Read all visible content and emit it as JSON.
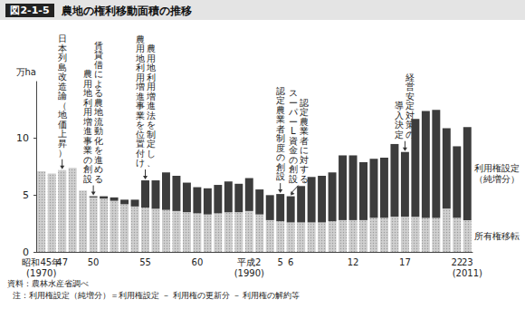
{
  "chart_data": {
    "type": "bar",
    "figure_label": "図2-1-5",
    "title": "農地の権利移動面積の推移",
    "y_axis_label": "万ha",
    "categories": [
      "昭和45年\n(1970)",
      null,
      "47",
      null,
      null,
      "50",
      null,
      null,
      null,
      null,
      "55",
      null,
      null,
      null,
      null,
      "60",
      null,
      null,
      null,
      null,
      "平成2\n(1990)",
      null,
      null,
      "5",
      "6",
      null,
      null,
      null,
      null,
      null,
      "12",
      null,
      null,
      null,
      null,
      "17",
      null,
      null,
      null,
      null,
      "22",
      "23\n(2011)"
    ],
    "series": [
      {
        "name": "所有権移転",
        "color": "#cfcfcf",
        "values": [
          7.1,
          6.9,
          7.2,
          7.4,
          5.4,
          4.8,
          4.7,
          4.5,
          4.2,
          4.0,
          3.9,
          3.8,
          3.7,
          3.6,
          3.5,
          3.4,
          3.3,
          3.4,
          3.5,
          3.5,
          3.6,
          3.3,
          2.8,
          2.7,
          2.6,
          2.6,
          2.6,
          2.6,
          2.7,
          2.8,
          2.8,
          2.8,
          3.0,
          3.0,
          3.1,
          3.1,
          3.1,
          3.0,
          3.0,
          3.8,
          3.0,
          2.8
        ]
      },
      {
        "name": "利用権設定（純増分）",
        "color": "#3c3c3c",
        "values": [
          0,
          0,
          0,
          0,
          0,
          0.1,
          0.2,
          0.3,
          0.4,
          0.6,
          2.4,
          2.5,
          3.3,
          3.1,
          2.6,
          2.3,
          2.3,
          2.5,
          2.7,
          2.5,
          2.9,
          2.2,
          2.2,
          2.4,
          2.3,
          3.2,
          4.0,
          4.1,
          4.3,
          5.7,
          5.7,
          5.1,
          5.2,
          5.3,
          6.4,
          5.7,
          8.6,
          9.4,
          9.5,
          7.1,
          6.3,
          8.2
        ]
      }
    ],
    "stacked": true,
    "ylim": [
      0,
      15
    ],
    "yticks": [
      0,
      5,
      10
    ],
    "grid": false,
    "annotations": [
      {
        "at": "47",
        "lines": [
          "日本列島改造論（地価上昇）"
        ]
      },
      {
        "at": "50",
        "lines": [
          "賃貸借による農地流動化を進める",
          "農用地利用増進事業の創設"
        ]
      },
      {
        "at": "55",
        "lines": [
          "農用地利用増進法を制定し、",
          "農用地利用増進事業を位置付け"
        ]
      },
      {
        "at": "5",
        "lines": [
          "認定農業者制度の創設"
        ]
      },
      {
        "at": "6",
        "lines": [
          "認定農業者に対する",
          "スーパーL資金の創設"
        ]
      },
      {
        "at": "17",
        "lines": [
          "経営安定対策の",
          "導入決定"
        ]
      }
    ],
    "source": "資料：農林水産省調べ",
    "note": "注：利用権設定（純増分）＝利用権設定 － 利用権の更新分 － 利用権の解約等"
  }
}
